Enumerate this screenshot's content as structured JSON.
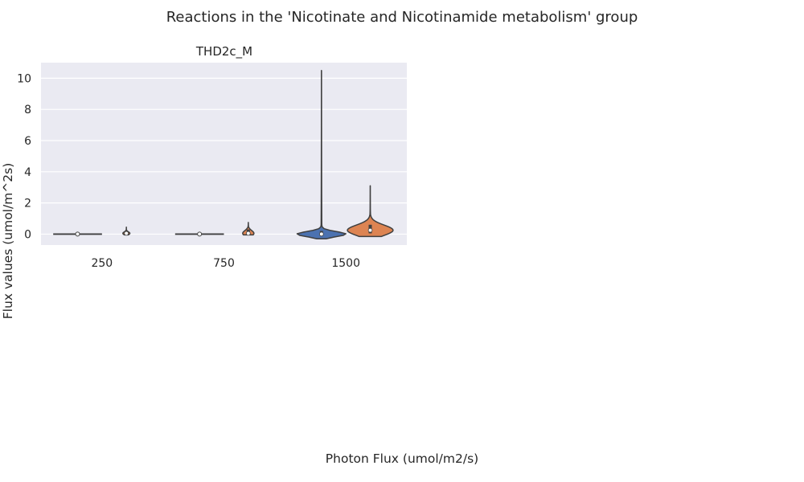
{
  "figure": {
    "title": "Reactions in the 'Nicotinate and Nicotinamide metabolism' group",
    "xlabel": "Photon Flux (umol/m2/s)",
    "ylabel": "Flux values (umol/m^2s)"
  },
  "chart_data": {
    "type": "violin",
    "title": "THD2c_M",
    "categories": [
      "250",
      "750",
      "1500"
    ],
    "ylim": [
      -0.7,
      11
    ],
    "yticks": [
      0,
      2,
      4,
      6,
      8,
      10
    ],
    "grid": true,
    "background": "#eaeaf2",
    "series": [
      {
        "color": "#4c72b0",
        "values": [
          {
            "category": "250",
            "min": 0,
            "q1": 0,
            "median": 0,
            "q3": 0,
            "max": 0
          },
          {
            "category": "750",
            "min": 0,
            "q1": 0,
            "median": 0,
            "q3": 0,
            "max": 0
          },
          {
            "category": "1500",
            "min": -0.3,
            "q1": 0,
            "median": 0,
            "q3": 0.2,
            "max": 10.5
          }
        ]
      },
      {
        "color": "#dd8452",
        "values": [
          {
            "category": "250",
            "min": -0.05,
            "q1": 0,
            "median": 0.05,
            "q3": 0.15,
            "max": 0.45
          },
          {
            "category": "750",
            "min": -0.05,
            "q1": 0,
            "median": 0.05,
            "q3": 0.3,
            "max": 0.75
          },
          {
            "category": "1500",
            "min": -0.15,
            "q1": 0.05,
            "median": 0.25,
            "q3": 0.6,
            "max": 3.1
          }
        ]
      }
    ]
  }
}
